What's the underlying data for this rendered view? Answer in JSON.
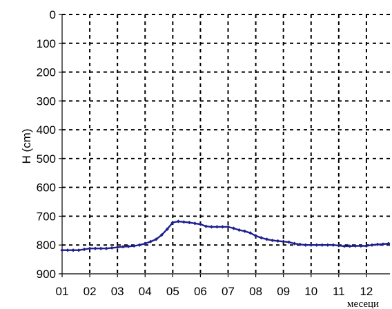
{
  "chart_data": {
    "type": "line",
    "title": "",
    "xlabel": "месеци",
    "ylabel": "H (cm)",
    "x_tick_labels": [
      "01",
      "02",
      "03",
      "04",
      "05",
      "06",
      "07",
      "08",
      "09",
      "10",
      "11",
      "12"
    ],
    "y_tick_labels": [
      "0",
      "100",
      "200",
      "300",
      "400",
      "500",
      "600",
      "700",
      "800",
      "900"
    ],
    "ylim": [
      900,
      0
    ],
    "y_inverted": true,
    "xlim": [
      1,
      12.85
    ],
    "grid": true,
    "legend": "none",
    "series": [
      {
        "color": "#1f1f8f",
        "marker": "diamond",
        "x": [
          1.0,
          1.2,
          1.4,
          1.6,
          1.8,
          2.0,
          2.2,
          2.4,
          2.6,
          2.8,
          3.0,
          3.2,
          3.4,
          3.6,
          3.8,
          4.0,
          4.2,
          4.4,
          4.6,
          4.8,
          5.0,
          5.2,
          5.4,
          5.6,
          5.8,
          6.0,
          6.2,
          6.4,
          6.6,
          6.8,
          7.0,
          7.2,
          7.4,
          7.6,
          7.8,
          8.0,
          8.2,
          8.4,
          8.6,
          8.8,
          9.0,
          9.2,
          9.4,
          9.6,
          9.8,
          10.0,
          10.2,
          10.4,
          10.6,
          10.8,
          11.0,
          11.2,
          11.4,
          11.6,
          11.8,
          12.0,
          12.2,
          12.4,
          12.6,
          12.8
        ],
        "y": [
          818,
          818,
          818,
          818,
          815,
          812,
          812,
          812,
          812,
          810,
          808,
          806,
          805,
          803,
          800,
          795,
          788,
          780,
          765,
          745,
          722,
          718,
          720,
          722,
          725,
          728,
          735,
          737,
          737,
          737,
          737,
          742,
          748,
          752,
          758,
          768,
          775,
          780,
          784,
          786,
          788,
          790,
          795,
          798,
          800,
          800,
          800,
          800,
          800,
          800,
          802,
          804,
          804,
          803,
          803,
          803,
          800,
          798,
          797,
          795
        ]
      }
    ]
  }
}
